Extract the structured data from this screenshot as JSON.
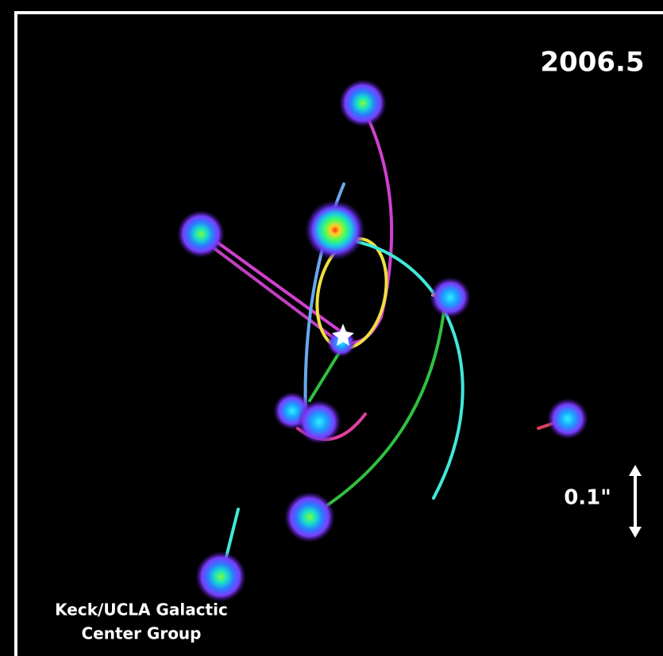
{
  "timestamp": "2006.5",
  "scale_label": "0.1\"",
  "credit": [
    "Keck/UCLA Galactic",
    "Center Group"
  ]
}
